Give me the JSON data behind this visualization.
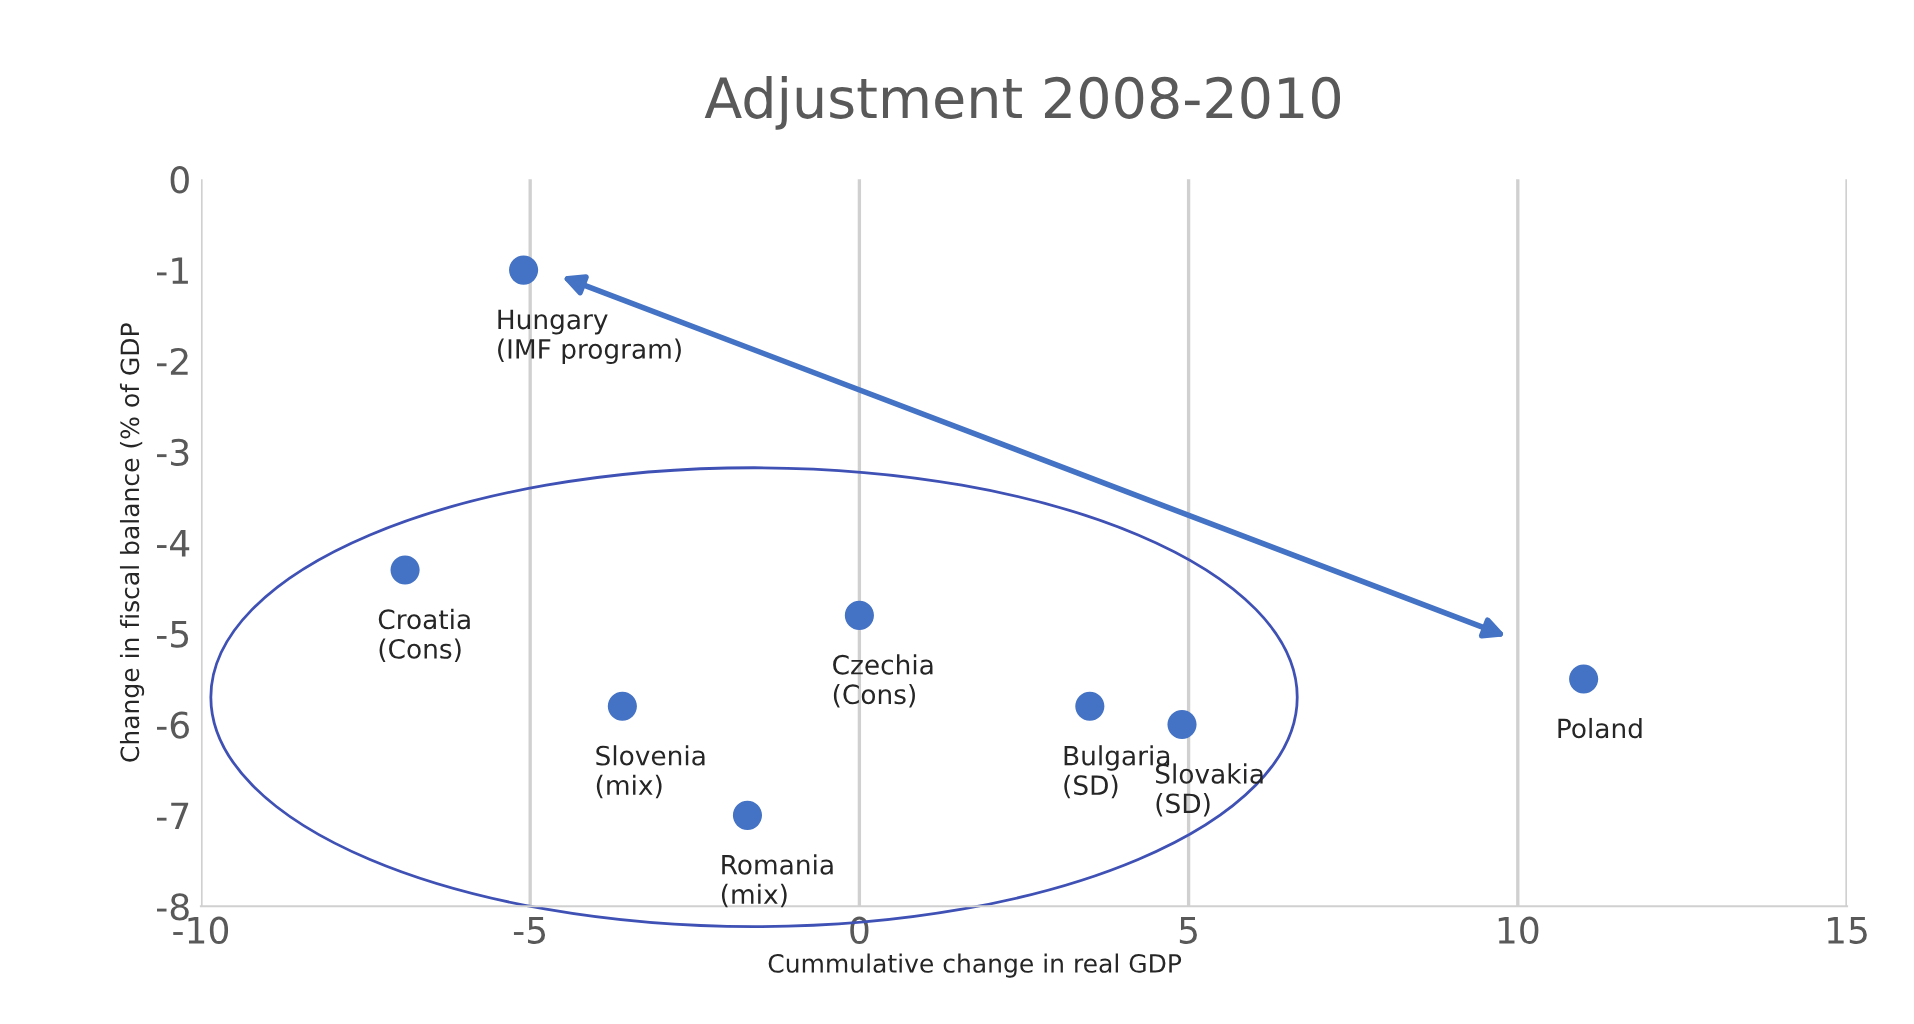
{
  "chart_data": {
    "type": "scatter",
    "title": "Adjustment 2008-2010",
    "xlabel": "Cummulative change in real GDP",
    "ylabel": "Change in fiscal balance (% of GDP",
    "x": [
      -5.1,
      -6.9,
      0,
      -3.6,
      -1.7,
      3.5,
      4.9,
      11
    ],
    "series": [
      {
        "color": "#4472c4",
        "values": [
          -1,
          -4.3,
          -4.8,
          -5.8,
          -7,
          -5.8,
          -6,
          -5.5
        ]
      }
    ],
    "annotations": [
      {
        "text": "Hungary\n(IMF program)",
        "x": -5.1,
        "y": -1
      },
      {
        "text": "Croatia\n(Cons)",
        "x": -6.9,
        "y": -4.3
      },
      {
        "text": "Czechia\n(Cons)",
        "x": 0,
        "y": -4.8
      },
      {
        "text": "Slovenia\n(mix)",
        "x": -3.6,
        "y": -5.8
      },
      {
        "text": "Romania\n(mix)",
        "x": -1.7,
        "y": -7
      },
      {
        "text": "Bulgaria\n(SD)",
        "x": 3.5,
        "y": -5.8
      },
      {
        "text": "Slovakia\n(SD)",
        "x": 4.9,
        "y": -6
      },
      {
        "text": "Poland",
        "x": 11,
        "y": -5.5
      }
    ],
    "xlim": [
      -10,
      15
    ],
    "xticks": [
      -10,
      -5,
      0,
      5,
      10,
      15
    ],
    "ylim": [
      -8,
      0
    ],
    "yticks": [
      -8,
      -7,
      -6,
      -5,
      -4,
      -3,
      -2,
      -1,
      0
    ],
    "grid": "x",
    "marker": "circle"
  }
}
